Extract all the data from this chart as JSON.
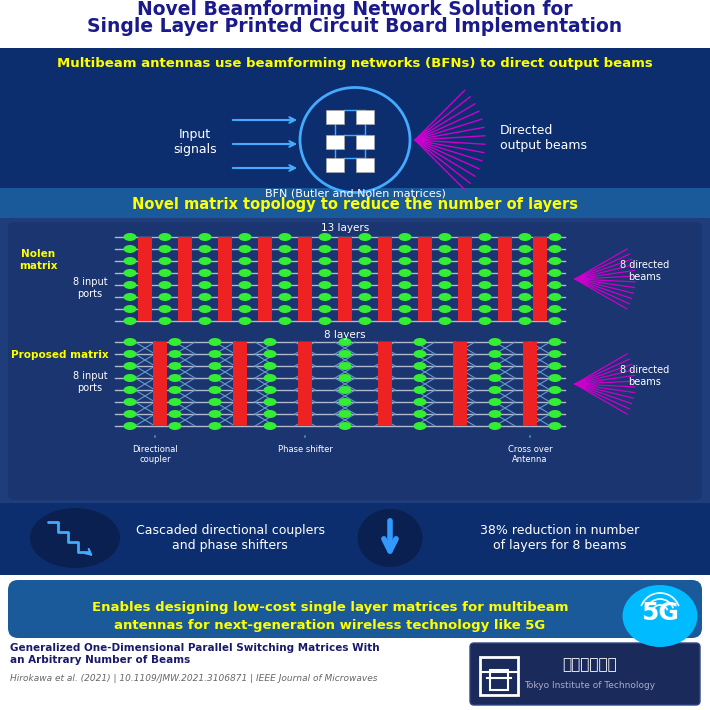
{
  "title_line1": "Novel Beamforming Network Solution for",
  "title_line2": "Single Layer Printed Circuit Board Implementation",
  "title_color": "#1a1a8c",
  "section1_bg": "#0d2e6e",
  "section1_header_bg": "#0d2e6e",
  "section1_text": "Multibeam antennas use beamforming networks (BFNs) to direct output beams",
  "section1_text_color": "#ffff00",
  "section2_header_bg": "#1a5a9a",
  "section2_header": "Novel matrix topology to reduce the number of layers",
  "section2_header_color": "#ffff00",
  "matrix_panel_bg": "#1a3a7a",
  "matrix_inner_bg": "#1e4080",
  "nolen_label": "Nolen\nmatrix",
  "nolen_label_color": "#ffff00",
  "proposed_label": "Proposed matrix",
  "proposed_label_color": "#ffff00",
  "input_label": "8 input\nports",
  "layers_13": "13 layers",
  "layers_8": "8 layers",
  "beams_label": "8 directed\nbeams",
  "line_color": "#b0b8cc",
  "coupler_color": "#ee2222",
  "node_color": "#33ee33",
  "bottom_bg": "#0d2e6e",
  "bottom_text1": "Cascaded directional couplers\nand phase shifters",
  "bottom_text2": "38% reduction in number\nof layers for 8 beams",
  "bottom_text_color": "#ffffff",
  "conclusion_bg": "#1a5a9a",
  "conclusion_text1": "Enables designing low-cost single layer matrices for multibeam",
  "conclusion_text2": "antennas for next-generation wireless technology like 5G",
  "conclusion_text_color": "#ffff00",
  "footer_bg": "#ffffff",
  "ref_title": "Generalized One-Dimensional Parallel Switching Matrices With\nan Arbitrary Number of Beams",
  "ref_authors": "Hirokawa et al. (2021) | 10.1109/JMW.2021.3106871 | IEEE Journal of Microwaves",
  "ref_title_color": "#1a1a6c",
  "ref_authors_color": "#666666",
  "dc_label": "Directional\ncoupler",
  "ps_label": "Phase shifter",
  "co_label": "Cross over\nAntenna",
  "5g_color": "#00bbff",
  "beam_color": "#cc00cc",
  "arrow_color": "#44aaff",
  "cross_color": "#6699cc"
}
